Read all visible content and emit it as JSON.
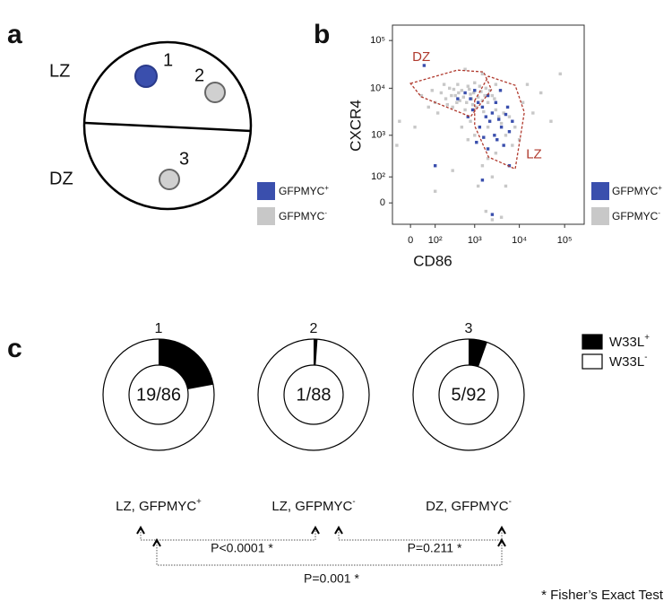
{
  "panels": {
    "a": {
      "label": "a",
      "zones": [
        "LZ",
        "DZ"
      ],
      "cells": [
        "1",
        "2",
        "3"
      ],
      "legend": [
        {
          "text": "GFPMYC",
          "sup": "+",
          "color": "#3a4fad"
        },
        {
          "text": "GFPMYC",
          "sup": "-",
          "color": "#c8c8c8"
        }
      ]
    },
    "b": {
      "label": "b"
    },
    "c": {
      "label": "c",
      "legend": [
        {
          "text": "W33L",
          "sup": "+",
          "color": "#000000"
        },
        {
          "text": "W33L",
          "sup": "-",
          "color": "#ffffff"
        }
      ],
      "comparisons": [
        "P<0.0001 *",
        "P=0.211 *",
        "P=0.001 *"
      ],
      "footnote": "* Fisher’s Exact Test"
    }
  },
  "chart_data": [
    {
      "type": "scatter",
      "xlabel": "CD86",
      "ylabel": "CXCR4",
      "xscale": "biexponential",
      "yscale": "biexponential",
      "xlim": [
        -60,
        270000
      ],
      "ylim": [
        -72,
        210000
      ],
      "xticks": [
        0,
        {
          "value": 100,
          "label": "10²"
        },
        {
          "value": 1000,
          "label": "10³"
        },
        {
          "value": 10000,
          "label": "10⁴"
        },
        {
          "value": 100000,
          "label": "10⁵"
        }
      ],
      "yticks": [
        0,
        {
          "value": 100,
          "label": "10²"
        },
        {
          "value": 1000,
          "label": "10³"
        },
        {
          "value": 10000,
          "label": "10⁴"
        },
        {
          "value": 100000,
          "label": "10⁵"
        }
      ],
      "gates": [
        {
          "label": "DZ",
          "points": [
            [
              0,
              12600
            ],
            [
              390,
              24000
            ],
            [
              1600,
              22000
            ],
            [
              2400,
              9300
            ],
            [
              800,
              2500
            ],
            [
              29,
              6600
            ]
          ]
        },
        {
          "label": "LZ",
          "points": [
            [
              1000,
              5500
            ],
            [
              2060,
              17800
            ],
            [
              8100,
              11500
            ],
            [
              12900,
              3100
            ],
            [
              8100,
              165
            ],
            [
              2060,
              325
            ],
            [
              1000,
              1600
            ]
          ]
        }
      ],
      "gate_color": "#b03a2e",
      "series": [
        {
          "name": "GFPMYC",
          "name_sup": "+",
          "color": "#3a4fad",
          "points": [
            [
              600,
              8000
            ],
            [
              800,
              6000
            ],
            [
              1000,
              9000
            ],
            [
              1200,
              5000
            ],
            [
              1500,
              4000
            ],
            [
              2000,
              7000
            ],
            [
              2500,
              3000
            ],
            [
              3000,
              5000
            ],
            [
              1800,
              2500
            ],
            [
              2200,
              2000
            ],
            [
              3500,
              2200
            ],
            [
              4000,
              1500
            ],
            [
              5000,
              2800
            ],
            [
              6000,
              1200
            ],
            [
              1300,
              1500
            ],
            [
              2800,
              1000
            ],
            [
              3200,
              800
            ],
            [
              4500,
              600
            ],
            [
              1600,
              900
            ],
            [
              2000,
              500
            ],
            [
              7000,
              2000
            ],
            [
              900,
              3500
            ],
            [
              700,
              2500
            ],
            [
              1100,
              700
            ],
            [
              5500,
              4000
            ],
            [
              3800,
              9000
            ],
            [
              40,
              30000
            ],
            [
              2500,
              -30
            ],
            [
              1500,
              80
            ],
            [
              6000,
              200
            ],
            [
              100,
              200
            ],
            [
              400,
              6000
            ]
          ]
        },
        {
          "name": "GFPMYC",
          "name_sup": "-",
          "color": "#c8c8c8",
          "points": [
            [
              100,
              5000
            ],
            [
              150,
              8000
            ],
            [
              200,
              6000
            ],
            [
              250,
              10000
            ],
            [
              300,
              4000
            ],
            [
              350,
              7000
            ],
            [
              400,
              12000
            ],
            [
              450,
              5500
            ],
            [
              500,
              9000
            ],
            [
              600,
              3500
            ],
            [
              700,
              11000
            ],
            [
              800,
              7500
            ],
            [
              900,
              4500
            ],
            [
              1000,
              13000
            ],
            [
              1200,
              6500
            ],
            [
              1400,
              8500
            ],
            [
              1600,
              3200
            ],
            [
              1800,
              10000
            ],
            [
              2000,
              5000
            ],
            [
              2500,
              7000
            ],
            [
              3000,
              3500
            ],
            [
              60,
              4000
            ],
            [
              80,
              9000
            ],
            [
              30,
              7000
            ],
            [
              120,
              3000
            ],
            [
              180,
              12000
            ],
            [
              220,
              4500
            ],
            [
              280,
              7000
            ],
            [
              320,
              9500
            ],
            [
              380,
              5000
            ],
            [
              420,
              8000
            ],
            [
              550,
              6500
            ],
            [
              650,
              5000
            ],
            [
              750,
              9500
            ],
            [
              850,
              6000
            ],
            [
              950,
              8000
            ],
            [
              1100,
              4000
            ],
            [
              1300,
              11000
            ],
            [
              1500,
              5500
            ],
            [
              1700,
              7000
            ],
            [
              2200,
              9000
            ],
            [
              2800,
              6000
            ],
            [
              3500,
              2500
            ],
            [
              4000,
              1800
            ],
            [
              5000,
              1000
            ],
            [
              4500,
              3000
            ],
            [
              6000,
              2500
            ],
            [
              8000,
              1500
            ],
            [
              10000,
              800
            ],
            [
              7000,
              600
            ],
            [
              3000,
              400
            ],
            [
              2000,
              300
            ],
            [
              1500,
              200
            ],
            [
              2500,
              100
            ],
            [
              1800,
              -20
            ],
            [
              1200,
              50
            ],
            [
              5000,
              50
            ],
            [
              20000,
              3000
            ],
            [
              30000,
              8000
            ],
            [
              15000,
              12000
            ],
            [
              12000,
              5000
            ],
            [
              50000,
              2000
            ],
            [
              100,
              30
            ],
            [
              300,
              150
            ],
            [
              -30,
              2000
            ],
            [
              -40,
              600
            ],
            [
              10,
              1500
            ],
            [
              80000,
              20000
            ],
            [
              500,
              1500
            ],
            [
              800,
              2000
            ],
            [
              700,
              800
            ],
            [
              1000,
              1000
            ],
            [
              2000,
              1500
            ],
            [
              3000,
              12000
            ],
            [
              1500,
              20000
            ],
            [
              600,
              25000
            ],
            [
              2500,
              -50
            ],
            [
              4000,
              -40
            ]
          ]
        }
      ]
    },
    {
      "type": "donut",
      "title": "1",
      "positive": 19,
      "total": 86,
      "value_label": "19/86",
      "color": "#000000",
      "caption": {
        "text": "LZ, GFPMYC",
        "sup": "+"
      }
    },
    {
      "type": "donut",
      "title": "2",
      "positive": 1,
      "total": 88,
      "value_label": "1/88",
      "color": "#000000",
      "caption": {
        "text": "LZ, GFPMYC",
        "sup": "-"
      }
    },
    {
      "type": "donut",
      "title": "3",
      "positive": 5,
      "total": 92,
      "value_label": "5/92",
      "color": "#000000",
      "caption": {
        "text": "DZ, GFPMYC",
        "sup": "-"
      }
    }
  ]
}
